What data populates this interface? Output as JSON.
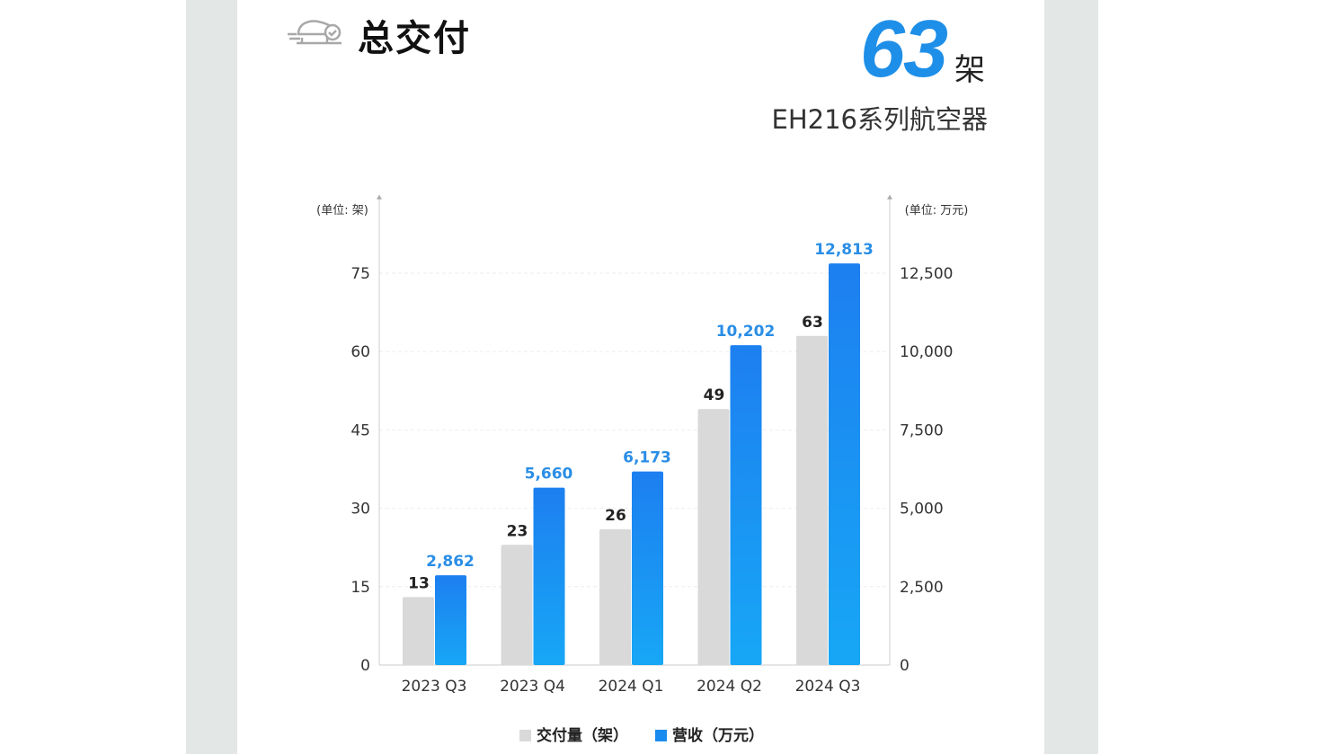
{
  "header": {
    "title": "总交付",
    "total_value": "63",
    "total_unit": "架",
    "subtitle": "EH216系列航空器",
    "icon": "aircraft-check-icon"
  },
  "chart_data": {
    "type": "bar",
    "categories": [
      "2023 Q3",
      "2023 Q4",
      "2024 Q1",
      "2024 Q2",
      "2024 Q3"
    ],
    "series": [
      {
        "name": "交付量（架）",
        "axis": "left",
        "values": [
          13,
          23,
          26,
          49,
          63
        ],
        "labels": [
          "13",
          "23",
          "26",
          "49",
          "63"
        ],
        "color": "#d9d9d9"
      },
      {
        "name": "营收（万元）",
        "axis": "right",
        "values": [
          2862,
          5660,
          6173,
          10202,
          12813
        ],
        "labels": [
          "2,862",
          "5,660",
          "6,173",
          "10,202",
          "12,813"
        ],
        "color": "#1a8cf0"
      }
    ],
    "left_axis": {
      "label": "(单位: 架)",
      "ticks": [
        0,
        15,
        30,
        45,
        60,
        75
      ],
      "tick_labels": [
        "0",
        "15",
        "30",
        "45",
        "60",
        "75"
      ],
      "ylim": [
        0,
        90
      ]
    },
    "right_axis": {
      "label": "(单位: 万元)",
      "ticks": [
        0,
        2500,
        5000,
        7500,
        10000,
        12500
      ],
      "tick_labels": [
        "0",
        "2,500",
        "5,000",
        "7,500",
        "10,000",
        "12,500"
      ],
      "ylim": [
        0,
        15000
      ]
    },
    "grid": true,
    "legend": "bottom"
  }
}
